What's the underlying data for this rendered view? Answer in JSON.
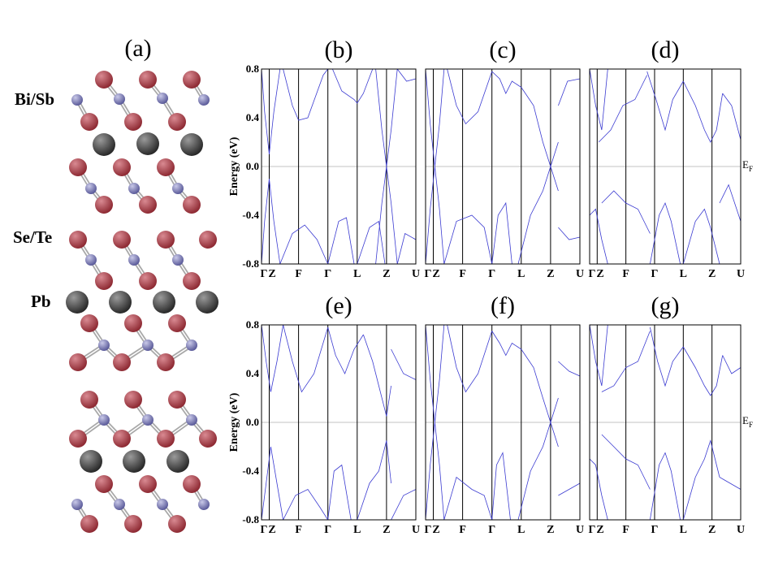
{
  "figure": {
    "panel_a_label": "(a)",
    "element_labels": [
      "Bi/Sb",
      "Se/Te",
      "Pb"
    ],
    "fermi_label": {
      "main": "E",
      "sub": "F"
    },
    "ylabel": "Energy (eV)",
    "colors": {
      "band": "#3b3bd1",
      "atom_red": "#8e2a33",
      "atom_blue": "#5b5b9a",
      "atom_black": "#2a2a2a",
      "bond": "#a8a8a8"
    }
  },
  "chart_data": [
    {
      "type": "line",
      "panel": "(b)",
      "ylabel": "Energy (eV)",
      "ylim": [
        -0.8,
        0.8
      ],
      "yticks": [
        "0.8",
        "0.4",
        "0.0",
        "-0.4",
        "-0.8"
      ],
      "kpoints": [
        "Γ",
        "Z",
        "F",
        "Γ",
        "L",
        "Z",
        "U"
      ],
      "kpos": [
        0,
        0.05,
        0.24,
        0.43,
        0.62,
        0.81,
        1.0
      ],
      "series": [
        {
          "x": [
            0,
            0.02,
            0.05,
            0.08,
            0.12
          ],
          "y": [
            0.8,
            0.45,
            0.1,
            0.45,
            0.8
          ]
        },
        {
          "x": [
            0.14,
            0.2,
            0.24,
            0.3,
            0.4,
            0.43
          ],
          "y": [
            0.8,
            0.5,
            0.38,
            0.4,
            0.75,
            0.8
          ]
        },
        {
          "x": [
            0.46,
            0.52,
            0.6,
            0.62,
            0.66,
            0.72
          ],
          "y": [
            0.8,
            0.62,
            0.55,
            0.52,
            0.6,
            0.8
          ]
        },
        {
          "x": [
            0.74,
            0.78,
            0.81,
            0.84,
            0.88
          ],
          "y": [
            0.8,
            0.3,
            0.0,
            0.3,
            0.8
          ]
        },
        {
          "x": [
            0.88,
            0.94,
            1.0
          ],
          "y": [
            0.8,
            0.7,
            0.72
          ]
        },
        {
          "x": [
            0,
            0.02,
            0.05,
            0.08,
            0.12
          ],
          "y": [
            -0.8,
            -0.45,
            -0.1,
            -0.45,
            -0.8
          ]
        },
        {
          "x": [
            0.12,
            0.2,
            0.28,
            0.36,
            0.43
          ],
          "y": [
            -0.8,
            -0.55,
            -0.48,
            -0.6,
            -0.8
          ]
        },
        {
          "x": [
            0.43,
            0.5,
            0.55,
            0.6
          ],
          "y": [
            -0.8,
            -0.45,
            -0.42,
            -0.8
          ]
        },
        {
          "x": [
            0.62,
            0.7,
            0.76,
            0.8
          ],
          "y": [
            -0.8,
            -0.5,
            -0.45,
            -0.8
          ]
        },
        {
          "x": [
            0.74,
            0.78,
            0.81,
            0.84,
            0.88
          ],
          "y": [
            -0.8,
            -0.3,
            0.0,
            -0.3,
            -0.8
          ]
        },
        {
          "x": [
            0.88,
            0.93,
            1.0
          ],
          "y": [
            -0.8,
            -0.55,
            -0.6
          ]
        }
      ]
    },
    {
      "type": "line",
      "panel": "(c)",
      "ylabel": "",
      "ylim": [
        -0.8,
        0.8
      ],
      "yticks": [
        "0.8",
        "0.4",
        "0.0",
        "-0.4",
        "-0.8"
      ],
      "kpoints": [
        "Γ",
        "Z",
        "F",
        "Γ",
        "L",
        "Z",
        "U"
      ],
      "kpos": [
        0,
        0.05,
        0.24,
        0.43,
        0.62,
        0.81,
        1.0
      ],
      "series": [
        {
          "x": [
            0,
            0.03,
            0.06,
            0.09,
            0.12
          ],
          "y": [
            0.8,
            0.35,
            0.0,
            0.35,
            0.8
          ]
        },
        {
          "x": [
            0.14,
            0.2,
            0.26,
            0.34,
            0.43
          ],
          "y": [
            0.8,
            0.5,
            0.35,
            0.45,
            0.78
          ]
        },
        {
          "x": [
            0.43,
            0.48,
            0.52,
            0.56,
            0.62
          ],
          "y": [
            0.78,
            0.72,
            0.6,
            0.7,
            0.65
          ]
        },
        {
          "x": [
            0.62,
            0.7,
            0.76,
            0.81,
            0.86
          ],
          "y": [
            0.65,
            0.5,
            0.2,
            0.0,
            0.2
          ]
        },
        {
          "x": [
            0.86,
            0.92,
            1.0
          ],
          "y": [
            0.5,
            0.7,
            0.72
          ]
        },
        {
          "x": [
            0,
            0.03,
            0.06,
            0.09,
            0.12
          ],
          "y": [
            -0.8,
            -0.35,
            0.0,
            -0.35,
            -0.8
          ]
        },
        {
          "x": [
            0.12,
            0.2,
            0.3,
            0.38,
            0.43
          ],
          "y": [
            -0.8,
            -0.45,
            -0.4,
            -0.5,
            -0.8
          ]
        },
        {
          "x": [
            0.43,
            0.47,
            0.52,
            0.56
          ],
          "y": [
            -0.8,
            -0.4,
            -0.3,
            -0.8
          ]
        },
        {
          "x": [
            0.6,
            0.68,
            0.76,
            0.81,
            0.86
          ],
          "y": [
            -0.8,
            -0.4,
            -0.2,
            0.0,
            -0.2
          ]
        },
        {
          "x": [
            0.86,
            0.93,
            1.0
          ],
          "y": [
            -0.5,
            -0.6,
            -0.58
          ]
        }
      ]
    },
    {
      "type": "line",
      "panel": "(d)",
      "ylabel": "",
      "ylim": [
        -0.8,
        0.8
      ],
      "yticks": [
        "0.8",
        "0.4",
        "0.0",
        "-0.4",
        "-0.8"
      ],
      "kpoints": [
        "Γ",
        "Z",
        "F",
        "Γ",
        "L",
        "Z",
        "U"
      ],
      "kpos": [
        0,
        0.05,
        0.24,
        0.43,
        0.62,
        0.81,
        1.0
      ],
      "series": [
        {
          "x": [
            0,
            0.04,
            0.08,
            0.12
          ],
          "y": [
            0.8,
            0.5,
            0.3,
            0.8
          ]
        },
        {
          "x": [
            0.06,
            0.14,
            0.22,
            0.3,
            0.38
          ],
          "y": [
            0.2,
            0.3,
            0.5,
            0.55,
            0.75
          ]
        },
        {
          "x": [
            0.38,
            0.44,
            0.5,
            0.55,
            0.62
          ],
          "y": [
            0.78,
            0.55,
            0.3,
            0.55,
            0.7
          ]
        },
        {
          "x": [
            0.62,
            0.7,
            0.76,
            0.8,
            0.84,
            0.88
          ],
          "y": [
            0.7,
            0.5,
            0.3,
            0.2,
            0.3,
            0.6
          ]
        },
        {
          "x": [
            0.88,
            0.94,
            1.0
          ],
          "y": [
            0.6,
            0.5,
            0.22
          ]
        },
        {
          "x": [
            0,
            0.04,
            0.08,
            0.12
          ],
          "y": [
            -0.4,
            -0.35,
            -0.6,
            -0.8
          ]
        },
        {
          "x": [
            0.08,
            0.16,
            0.24,
            0.32,
            0.4
          ],
          "y": [
            -0.3,
            -0.2,
            -0.3,
            -0.35,
            -0.55
          ]
        },
        {
          "x": [
            0.4,
            0.46,
            0.5,
            0.54,
            0.6
          ],
          "y": [
            -0.8,
            -0.4,
            -0.3,
            -0.45,
            -0.8
          ]
        },
        {
          "x": [
            0.62,
            0.7,
            0.76,
            0.8,
            0.86
          ],
          "y": [
            -0.8,
            -0.45,
            -0.35,
            -0.5,
            -0.8
          ]
        },
        {
          "x": [
            0.86,
            0.92,
            1.0
          ],
          "y": [
            -0.3,
            -0.15,
            -0.45
          ]
        }
      ]
    },
    {
      "type": "line",
      "panel": "(e)",
      "ylabel": "Energy (eV)",
      "ylim": [
        -0.8,
        0.8
      ],
      "yticks": [
        "0.8",
        "0.4",
        "0.0",
        "-0.4",
        "-0.8"
      ],
      "kpoints": [
        "Γ",
        "Z",
        "F",
        "Γ",
        "L",
        "Z",
        "U"
      ],
      "kpos": [
        0,
        0.05,
        0.24,
        0.43,
        0.62,
        0.81,
        1.0
      ],
      "series": [
        {
          "x": [
            0,
            0.03,
            0.06,
            0.1,
            0.14
          ],
          "y": [
            0.8,
            0.5,
            0.25,
            0.5,
            0.8
          ]
        },
        {
          "x": [
            0.14,
            0.2,
            0.26,
            0.34,
            0.43
          ],
          "y": [
            0.8,
            0.5,
            0.25,
            0.4,
            0.78
          ]
        },
        {
          "x": [
            0.43,
            0.48,
            0.54,
            0.6,
            0.66
          ],
          "y": [
            0.78,
            0.55,
            0.4,
            0.6,
            0.72
          ]
        },
        {
          "x": [
            0.66,
            0.72,
            0.78,
            0.81,
            0.84
          ],
          "y": [
            0.72,
            0.5,
            0.2,
            0.05,
            0.3
          ]
        },
        {
          "x": [
            0.84,
            0.92,
            1.0
          ],
          "y": [
            0.6,
            0.4,
            0.35
          ]
        },
        {
          "x": [
            0,
            0.03,
            0.06,
            0.1,
            0.14
          ],
          "y": [
            -0.8,
            -0.5,
            -0.2,
            -0.5,
            -0.8
          ]
        },
        {
          "x": [
            0.14,
            0.22,
            0.3,
            0.38,
            0.43
          ],
          "y": [
            -0.8,
            -0.6,
            -0.55,
            -0.7,
            -0.8
          ]
        },
        {
          "x": [
            0.43,
            0.47,
            0.52,
            0.58
          ],
          "y": [
            -0.8,
            -0.4,
            -0.35,
            -0.8
          ]
        },
        {
          "x": [
            0.62,
            0.7,
            0.76,
            0.81,
            0.84
          ],
          "y": [
            -0.8,
            -0.5,
            -0.4,
            -0.15,
            -0.5
          ]
        },
        {
          "x": [
            0.84,
            0.92,
            1.0
          ],
          "y": [
            -0.8,
            -0.6,
            -0.55
          ]
        }
      ]
    },
    {
      "type": "line",
      "panel": "(f)",
      "ylabel": "",
      "ylim": [
        -0.8,
        0.8
      ],
      "yticks": [
        "0.8",
        "0.4",
        "0.0",
        "-0.4",
        "-0.8"
      ],
      "kpoints": [
        "Γ",
        "Z",
        "F",
        "Γ",
        "L",
        "Z",
        "U"
      ],
      "kpos": [
        0,
        0.05,
        0.24,
        0.43,
        0.62,
        0.81,
        1.0
      ],
      "series": [
        {
          "x": [
            0,
            0.03,
            0.06,
            0.09,
            0.12
          ],
          "y": [
            0.8,
            0.35,
            0.0,
            0.35,
            0.8
          ]
        },
        {
          "x": [
            0.14,
            0.2,
            0.26,
            0.34,
            0.43
          ],
          "y": [
            0.8,
            0.45,
            0.25,
            0.4,
            0.75
          ]
        },
        {
          "x": [
            0.43,
            0.48,
            0.52,
            0.56,
            0.62
          ],
          "y": [
            0.75,
            0.65,
            0.55,
            0.65,
            0.6
          ]
        },
        {
          "x": [
            0.62,
            0.7,
            0.76,
            0.81,
            0.86
          ],
          "y": [
            0.6,
            0.45,
            0.2,
            0.0,
            0.2
          ]
        },
        {
          "x": [
            0.86,
            0.93,
            1.0
          ],
          "y": [
            0.5,
            0.42,
            0.38
          ]
        },
        {
          "x": [
            0,
            0.03,
            0.06,
            0.09,
            0.12
          ],
          "y": [
            -0.8,
            -0.35,
            0.0,
            -0.35,
            -0.8
          ]
        },
        {
          "x": [
            0.12,
            0.2,
            0.3,
            0.38,
            0.43
          ],
          "y": [
            -0.8,
            -0.45,
            -0.55,
            -0.6,
            -0.8
          ]
        },
        {
          "x": [
            0.43,
            0.46,
            0.5,
            0.55
          ],
          "y": [
            -0.8,
            -0.35,
            -0.25,
            -0.8
          ]
        },
        {
          "x": [
            0.6,
            0.68,
            0.76,
            0.81,
            0.86
          ],
          "y": [
            -0.8,
            -0.4,
            -0.2,
            0.0,
            -0.2
          ]
        },
        {
          "x": [
            0.86,
            0.93,
            1.0
          ],
          "y": [
            -0.6,
            -0.55,
            -0.5
          ]
        }
      ]
    },
    {
      "type": "line",
      "panel": "(g)",
      "ylabel": "",
      "ylim": [
        -0.8,
        0.8
      ],
      "yticks": [
        "0.8",
        "0.4",
        "0.0",
        "-0.4",
        "-0.8"
      ],
      "kpoints": [
        "Γ",
        "Z",
        "F",
        "Γ",
        "L",
        "Z",
        "U"
      ],
      "kpos": [
        0,
        0.05,
        0.24,
        0.43,
        0.62,
        0.81,
        1.0
      ],
      "series": [
        {
          "x": [
            0,
            0.04,
            0.08,
            0.12
          ],
          "y": [
            0.8,
            0.5,
            0.3,
            0.8
          ]
        },
        {
          "x": [
            0.08,
            0.16,
            0.24,
            0.32,
            0.4
          ],
          "y": [
            0.25,
            0.3,
            0.45,
            0.5,
            0.75
          ]
        },
        {
          "x": [
            0.4,
            0.45,
            0.5,
            0.55,
            0.62
          ],
          "y": [
            0.78,
            0.5,
            0.3,
            0.5,
            0.62
          ]
        },
        {
          "x": [
            0.62,
            0.7,
            0.76,
            0.8,
            0.84,
            0.88
          ],
          "y": [
            0.62,
            0.45,
            0.3,
            0.22,
            0.3,
            0.55
          ]
        },
        {
          "x": [
            0.88,
            0.94,
            1.0
          ],
          "y": [
            0.55,
            0.4,
            0.45
          ]
        },
        {
          "x": [
            0,
            0.04,
            0.08,
            0.12
          ],
          "y": [
            -0.3,
            -0.35,
            -0.6,
            -0.8
          ]
        },
        {
          "x": [
            0.08,
            0.16,
            0.24,
            0.32,
            0.4
          ],
          "y": [
            -0.1,
            -0.2,
            -0.3,
            -0.35,
            -0.55
          ]
        },
        {
          "x": [
            0.4,
            0.46,
            0.5,
            0.54,
            0.6
          ],
          "y": [
            -0.8,
            -0.35,
            -0.25,
            -0.4,
            -0.8
          ]
        },
        {
          "x": [
            0.62,
            0.7,
            0.76,
            0.8,
            0.86
          ],
          "y": [
            -0.8,
            -0.45,
            -0.3,
            -0.15,
            -0.45
          ]
        },
        {
          "x": [
            0.86,
            0.93,
            1.0
          ],
          "y": [
            -0.45,
            -0.5,
            -0.55
          ]
        }
      ]
    }
  ]
}
